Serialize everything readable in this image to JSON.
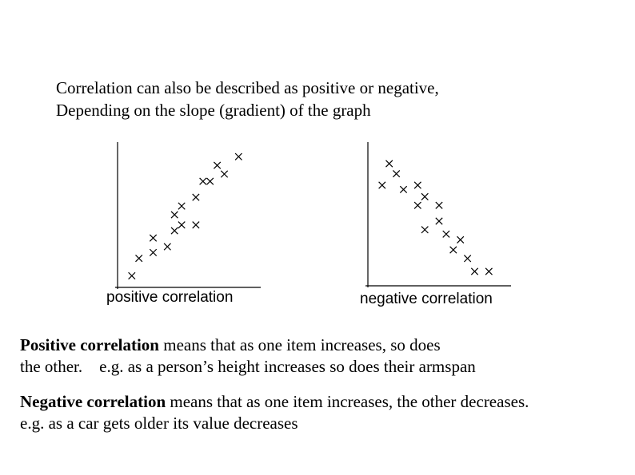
{
  "intro": {
    "line1": "Correlation can also be described as positive or negative,",
    "line2": "Depending on the slope (gradient) of the graph"
  },
  "colors": {
    "text": "#000000",
    "marks": "#000000",
    "background": "#ffffff"
  },
  "chart_data": [
    {
      "type": "scatter",
      "caption": "positive correlation",
      "marker": "x",
      "xlim": [
        0,
        10
      ],
      "ylim": [
        0,
        10
      ],
      "points": [
        [
          1.0,
          0.8
        ],
        [
          1.5,
          2.0
        ],
        [
          2.5,
          2.4
        ],
        [
          2.5,
          3.4
        ],
        [
          3.5,
          2.8
        ],
        [
          4.0,
          3.9
        ],
        [
          4.0,
          5.0
        ],
        [
          4.5,
          4.3
        ],
        [
          4.5,
          5.6
        ],
        [
          5.5,
          4.3
        ],
        [
          5.5,
          6.2
        ],
        [
          6.0,
          7.3
        ],
        [
          6.5,
          7.3
        ],
        [
          7.0,
          8.4
        ],
        [
          7.5,
          7.8
        ],
        [
          8.5,
          9.0
        ]
      ]
    },
    {
      "type": "scatter",
      "caption": "negative correlation",
      "marker": "x",
      "xlim": [
        0,
        10
      ],
      "ylim": [
        0,
        10
      ],
      "points": [
        [
          1.0,
          7.0
        ],
        [
          1.5,
          8.5
        ],
        [
          2.0,
          7.8
        ],
        [
          2.5,
          6.7
        ],
        [
          3.5,
          7.0
        ],
        [
          3.5,
          5.6
        ],
        [
          4.0,
          6.2
        ],
        [
          4.0,
          3.9
        ],
        [
          5.0,
          5.6
        ],
        [
          5.0,
          4.5
        ],
        [
          5.5,
          3.6
        ],
        [
          6.0,
          2.5
        ],
        [
          6.5,
          3.2
        ],
        [
          7.0,
          1.9
        ],
        [
          7.5,
          1.0
        ],
        [
          8.5,
          1.0
        ]
      ]
    }
  ],
  "positive": {
    "term": "Positive correlation",
    "rest": " means that as one item increases, so does",
    "line2": "the other.    e.g. as a person’s height increases so does their armspan"
  },
  "negative": {
    "term": "Negative correlation",
    "rest": " means that as one item increases, the other decreases.",
    "line2": "e.g. as a car gets older its value decreases"
  }
}
